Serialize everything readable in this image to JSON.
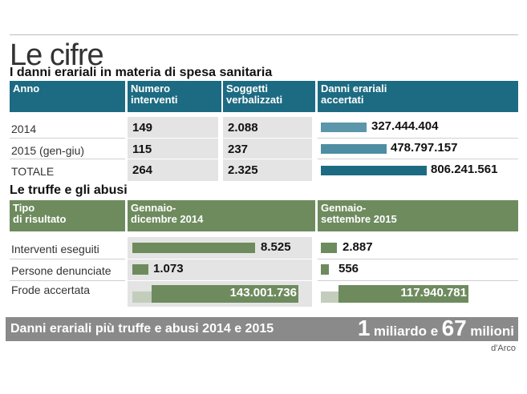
{
  "title": "Le cifre",
  "section1": {
    "title": "I danni erariali in materia di spesa sanitaria",
    "headers": {
      "anno": "Anno",
      "numero_l1": "Numero",
      "numero_l2": "interventi",
      "soggetti_l1": "Soggetti",
      "soggetti_l2": "verbalizzati",
      "danni_l1": "Danni erariali",
      "danni_l2": "accertati"
    },
    "rows": [
      {
        "anno": "2014",
        "interventi": "149",
        "soggetti": "2.088",
        "danni": "327.444.404",
        "danni_value": 327444404
      },
      {
        "anno": "2015 (gen-giu)",
        "interventi": "115",
        "soggetti": "237",
        "danni": "478.797.157",
        "danni_value": 478797157
      },
      {
        "anno": "TOTALE",
        "interventi": "264",
        "soggetti": "2.325",
        "danni": "806.241.561",
        "danni_value": 806241561
      }
    ],
    "colors": {
      "header": "#1d6b82",
      "bar_2014": "#5c96aa",
      "bar_2015": "#4d8ea3",
      "bar_totale": "#1d6b82"
    }
  },
  "section2": {
    "title": "Le truffe e gli abusi",
    "headers": {
      "tipo_l1": "Tipo",
      "tipo_l2": "di risultato",
      "p1_l1": "Gennaio-",
      "p1_l2": "dicembre 2014",
      "p2_l1": "Gennaio-",
      "p2_l2": "settembre 2015"
    },
    "rows": [
      {
        "label": "Interventi eseguiti",
        "v2014": "8.525",
        "v2014_value": 8525,
        "v2015": "2.887",
        "v2015_value": 2887
      },
      {
        "label": "Persone denunciate",
        "v2014": "1.073",
        "v2014_value": 1073,
        "v2015": "556",
        "v2015_value": 556
      },
      {
        "label": "Frode accertata",
        "v2014": "143.001.736",
        "v2014_value": 143001736,
        "v2015": "117.940.781",
        "v2015_value": 117940781
      }
    ],
    "colors": {
      "header": "#6e8b5e",
      "bar": "#6e8b5e"
    }
  },
  "footer": {
    "text": "Danni erariali più truffe e abusi 2014 e 2015",
    "n1": "1",
    "w1": "miliardo e",
    "n2": "67",
    "w2": "milioni"
  },
  "credit": "d'Arco"
}
